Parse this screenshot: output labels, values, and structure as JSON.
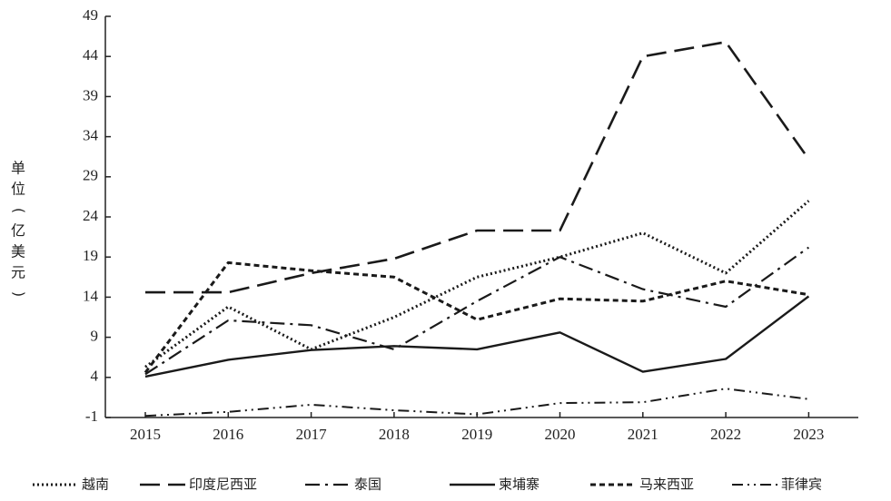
{
  "chart_data": {
    "type": "line",
    "title": "",
    "xlabel": "",
    "ylabel": "单位(亿美元)",
    "categories": [
      "2015",
      "2016",
      "2017",
      "2018",
      "2019",
      "2020",
      "2021",
      "2022",
      "2023"
    ],
    "yticks": [
      -1,
      4,
      9,
      14,
      19,
      24,
      29,
      34,
      39,
      44,
      49
    ],
    "ylim": [
      -1,
      49
    ],
    "grid": false,
    "legend_position": "bottom",
    "series": [
      {
        "name": "越南",
        "style": "dotted",
        "values": [
          5.3,
          12.8,
          7.5,
          11.5,
          16.5,
          19.0,
          22.0,
          17.0,
          26.0
        ]
      },
      {
        "name": "印度尼西亚",
        "style": "long-dash",
        "values": [
          14.6,
          14.6,
          17.0,
          18.8,
          22.3,
          22.3,
          44.0,
          45.8,
          31.2
        ]
      },
      {
        "name": "泰国",
        "style": "dash-dot",
        "values": [
          4.4,
          11.1,
          10.5,
          7.5,
          13.5,
          19.0,
          15.0,
          12.8,
          20.2
        ]
      },
      {
        "name": "柬埔寨",
        "style": "solid",
        "values": [
          4.1,
          6.2,
          7.4,
          7.9,
          7.5,
          9.6,
          4.7,
          6.3,
          14.1
        ]
      },
      {
        "name": "马来西亚",
        "style": "short-dash",
        "values": [
          4.6,
          18.3,
          17.3,
          16.5,
          11.2,
          13.8,
          13.5,
          16.0,
          14.3
        ]
      },
      {
        "name": "菲律宾",
        "style": "dash-dot-dot",
        "values": [
          -0.8,
          -0.3,
          0.6,
          -0.1,
          -0.6,
          0.8,
          0.9,
          2.6,
          1.3
        ]
      }
    ]
  }
}
